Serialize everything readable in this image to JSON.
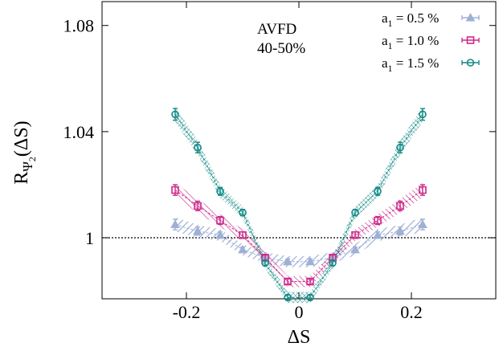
{
  "chart_data": {
    "type": "scatter",
    "xlabel": "ΔS",
    "ylabel": {
      "main": "R",
      "sub": "Ψ",
      "subsub": "2",
      "tail": "(ΔS)"
    },
    "xlim": [
      -0.35,
      0.35
    ],
    "ylim": [
      0.977,
      1.089
    ],
    "x_ticks": [
      {
        "value": -0.2,
        "label": "-0.2"
      },
      {
        "value": 0,
        "label": "0"
      },
      {
        "value": 0.2,
        "label": "0.2"
      }
    ],
    "y_ticks": [
      {
        "value": 1.0,
        "label": "1"
      },
      {
        "value": 1.04,
        "label": "1.04"
      },
      {
        "value": 1.08,
        "label": "1.08"
      }
    ],
    "annotation": [
      "AVFD",
      "40-50%"
    ],
    "reference_line": {
      "y": 1.0,
      "style": "dotted"
    },
    "legend_position": "top-right",
    "x": [
      -0.22,
      -0.18,
      -0.14,
      -0.1,
      -0.06,
      -0.02,
      0.02,
      0.06,
      0.1,
      0.14,
      0.18,
      0.22
    ],
    "series": [
      {
        "name": "a1 = 0.5 %",
        "legend_prefix": "a",
        "legend_sub": "1",
        "legend_suffix": " = 0.5 %",
        "marker": "triangle",
        "color": "#9fb0d6",
        "band_style": "diagonal-hatch",
        "values": [
          1.005,
          1.0025,
          1.001,
          0.9955,
          0.9925,
          0.991,
          0.991,
          0.9925,
          0.9955,
          1.001,
          1.0025,
          1.005
        ],
        "errors": [
          0.002,
          0.0015,
          0.0012,
          0.001,
          0.001,
          0.001,
          0.001,
          0.001,
          0.001,
          0.0012,
          0.0015,
          0.002
        ]
      },
      {
        "name": "a1 = 1.0 %",
        "legend_prefix": "a",
        "legend_sub": "1",
        "legend_suffix": " = 1.0 %",
        "marker": "square",
        "color": "#cc2a8a",
        "band_style": "diagonal-hatch",
        "values": [
          1.018,
          1.012,
          1.0065,
          1.001,
          0.9925,
          0.9835,
          0.9835,
          0.9925,
          1.001,
          1.0065,
          1.012,
          1.018
        ],
        "errors": [
          0.002,
          0.0018,
          0.0015,
          0.0012,
          0.001,
          0.001,
          0.001,
          0.001,
          0.0012,
          0.0015,
          0.0018,
          0.002
        ]
      },
      {
        "name": "a1 = 1.5 %",
        "legend_prefix": "a",
        "legend_sub": "1",
        "legend_suffix": " = 1.5 %",
        "marker": "circle",
        "color": "#138a88",
        "band_style": "cross-hatch",
        "values": [
          1.0465,
          1.034,
          1.0175,
          1.0095,
          0.9905,
          0.9775,
          0.9775,
          0.9905,
          1.0095,
          1.0175,
          1.034,
          1.0465
        ],
        "errors": [
          0.0022,
          0.002,
          0.0015,
          0.0012,
          0.001,
          0.001,
          0.001,
          0.001,
          0.0012,
          0.0015,
          0.002,
          0.0022
        ]
      }
    ]
  }
}
